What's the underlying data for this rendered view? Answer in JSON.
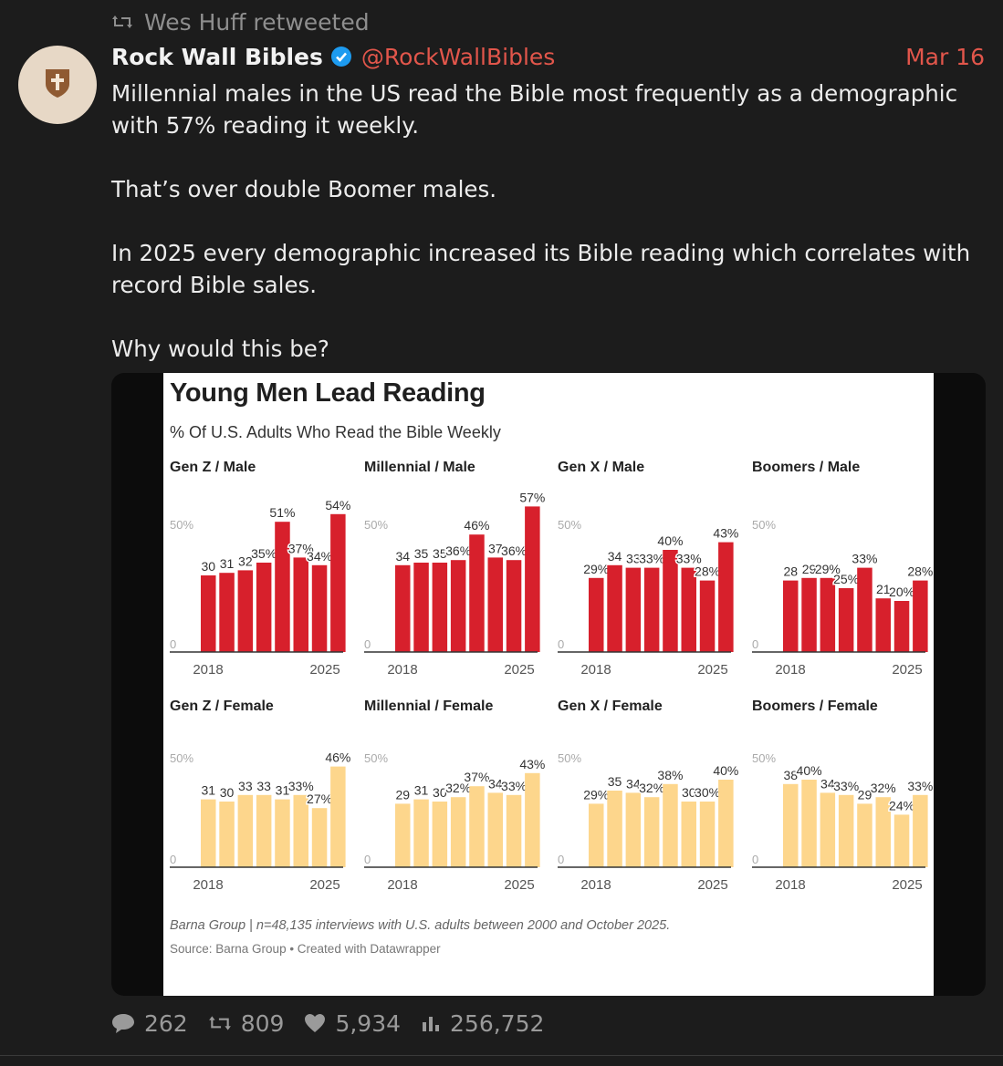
{
  "retweet": {
    "icon": "retweet-icon",
    "text": "Wes Huff retweeted"
  },
  "author": {
    "name": "Rock Wall Bibles",
    "handle": "@RockWallBibles",
    "verified_icon": "verified-badge-icon",
    "avatar_icon": "shield-cross-icon",
    "date": "Mar 16"
  },
  "tweet": {
    "paragraphs": [
      "Millennial males in the US read the Bible most frequently as a demographic with 57% reading it weekly.",
      "That’s over double Boomer males.",
      "In 2025 every demographic increased its Bible reading which correlates with record Bible sales.",
      "Why would this be?"
    ]
  },
  "chart": {
    "title": "Young Men Lead Reading",
    "subtitle": "% Of U.S. Adults Who Read the Bible Weekly",
    "footnote": "Barna Group | n=48,135 interviews with U.S. adults between 2000 and October 2025.",
    "source": "Source: Barna Group • Created with Datawrapper"
  },
  "chart_data": {
    "type": "bar",
    "title": "Young Men Lead Reading",
    "subtitle": "% Of U.S. Adults Who Read the Bible Weekly",
    "x_labels": [
      "2018",
      "2025"
    ],
    "ylim": [
      0,
      60
    ],
    "y_reference_label": "50%",
    "y_zero_label": "0",
    "colors": {
      "male": "#d7202c",
      "female": "#fdd68c"
    },
    "panels": [
      {
        "name": "Gen Z / Male",
        "group": "male",
        "values": [
          30,
          31,
          32,
          35,
          51,
          37,
          34,
          54
        ],
        "labels": [
          "30",
          "31",
          "32",
          "35%",
          "51%",
          "37%",
          "34%",
          "54%"
        ]
      },
      {
        "name": "Millennial / Male",
        "group": "male",
        "values": [
          34,
          35,
          35,
          36,
          46,
          37,
          36,
          57
        ],
        "labels": [
          "34",
          "35",
          "35",
          "36%",
          "46%",
          "37",
          "36%",
          "57%"
        ]
      },
      {
        "name": "Gen X / Male",
        "group": "male",
        "values": [
          29,
          34,
          33,
          33,
          40,
          33,
          28,
          43
        ],
        "labels": [
          "29%",
          "34",
          "33",
          "33%",
          "40%",
          "33%",
          "28%",
          "43%"
        ]
      },
      {
        "name": "Boomers / Male",
        "group": "male",
        "values": [
          28,
          29,
          29,
          25,
          33,
          21,
          20,
          28
        ],
        "labels": [
          "28",
          "29",
          "29%",
          "25%",
          "33%",
          "21",
          "20%",
          "28%"
        ]
      },
      {
        "name": "Gen Z / Female",
        "group": "female",
        "values": [
          31,
          30,
          33,
          33,
          31,
          33,
          27,
          46
        ],
        "labels": [
          "31",
          "30",
          "33",
          "33",
          "31",
          "33%",
          "27%",
          "46%"
        ]
      },
      {
        "name": "Millennial / Female",
        "group": "female",
        "values": [
          29,
          31,
          30,
          32,
          37,
          34,
          33,
          43
        ],
        "labels": [
          "29",
          "31",
          "30",
          "32%",
          "37%",
          "34",
          "33%",
          "43%"
        ]
      },
      {
        "name": "Gen X / Female",
        "group": "female",
        "values": [
          29,
          35,
          34,
          32,
          38,
          30,
          30,
          40
        ],
        "labels": [
          "29%",
          "35",
          "34",
          "32%",
          "38%",
          "30",
          "30%",
          "40%"
        ]
      },
      {
        "name": "Boomers / Female",
        "group": "female",
        "values": [
          38,
          40,
          34,
          33,
          29,
          32,
          24,
          33
        ],
        "labels": [
          "38",
          "40%",
          "34",
          "33%",
          "29",
          "32%",
          "24%",
          "33%"
        ]
      }
    ]
  },
  "stats": {
    "replies": {
      "icon": "reply-bubble-icon",
      "value": "262"
    },
    "retweets": {
      "icon": "retweet-icon",
      "value": "809"
    },
    "likes": {
      "icon": "heart-icon",
      "value": "5,934"
    },
    "views": {
      "icon": "views-bar-icon",
      "value": "256,752"
    }
  }
}
